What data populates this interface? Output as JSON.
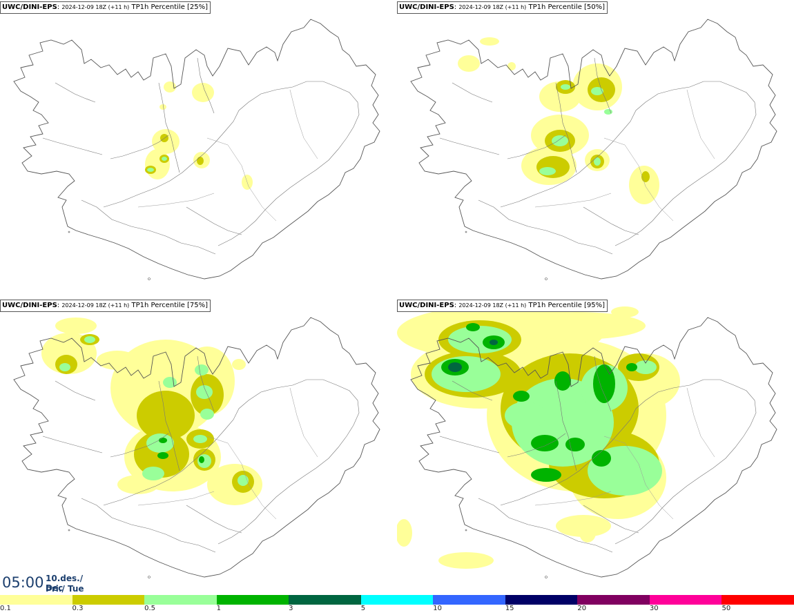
{
  "panels": [
    {
      "model": "UWC/DINI-EPS",
      "date": "2024-12-09 18Z (+11 h)",
      "field": "TP1h Percentile [25%]"
    },
    {
      "model": "UWC/DINI-EPS",
      "date": "2024-12-09 18Z (+11 h)",
      "field": "TP1h Percentile [50%]"
    },
    {
      "model": "UWC/DINI-EPS",
      "date": "2024-12-09 18Z (+11 h)",
      "field": "TP1h Percentile [75%]"
    },
    {
      "model": "UWC/DINI-EPS",
      "date": "2024-12-09 18Z (+11 h)",
      "field": "TP1h Percentile [95%]"
    }
  ],
  "time": "05:00",
  "date_line1": "10.des./ Dec",
  "date_line2": "Þri./ Tue",
  "legend": {
    "colors": [
      "#ffff99",
      "#cccc00",
      "#99ff99",
      "#00b300",
      "#006640",
      "#00ffff",
      "#3366ff",
      "#000066",
      "#800060",
      "#ff0099",
      "#ff0000"
    ],
    "ticks": [
      "0.1",
      "0.3",
      "0.5",
      "1",
      "3",
      "5",
      "10",
      "15",
      "20",
      "30",
      "50"
    ]
  },
  "colors": {
    "coast": "#444444",
    "title_text": "#1c3f6e"
  }
}
